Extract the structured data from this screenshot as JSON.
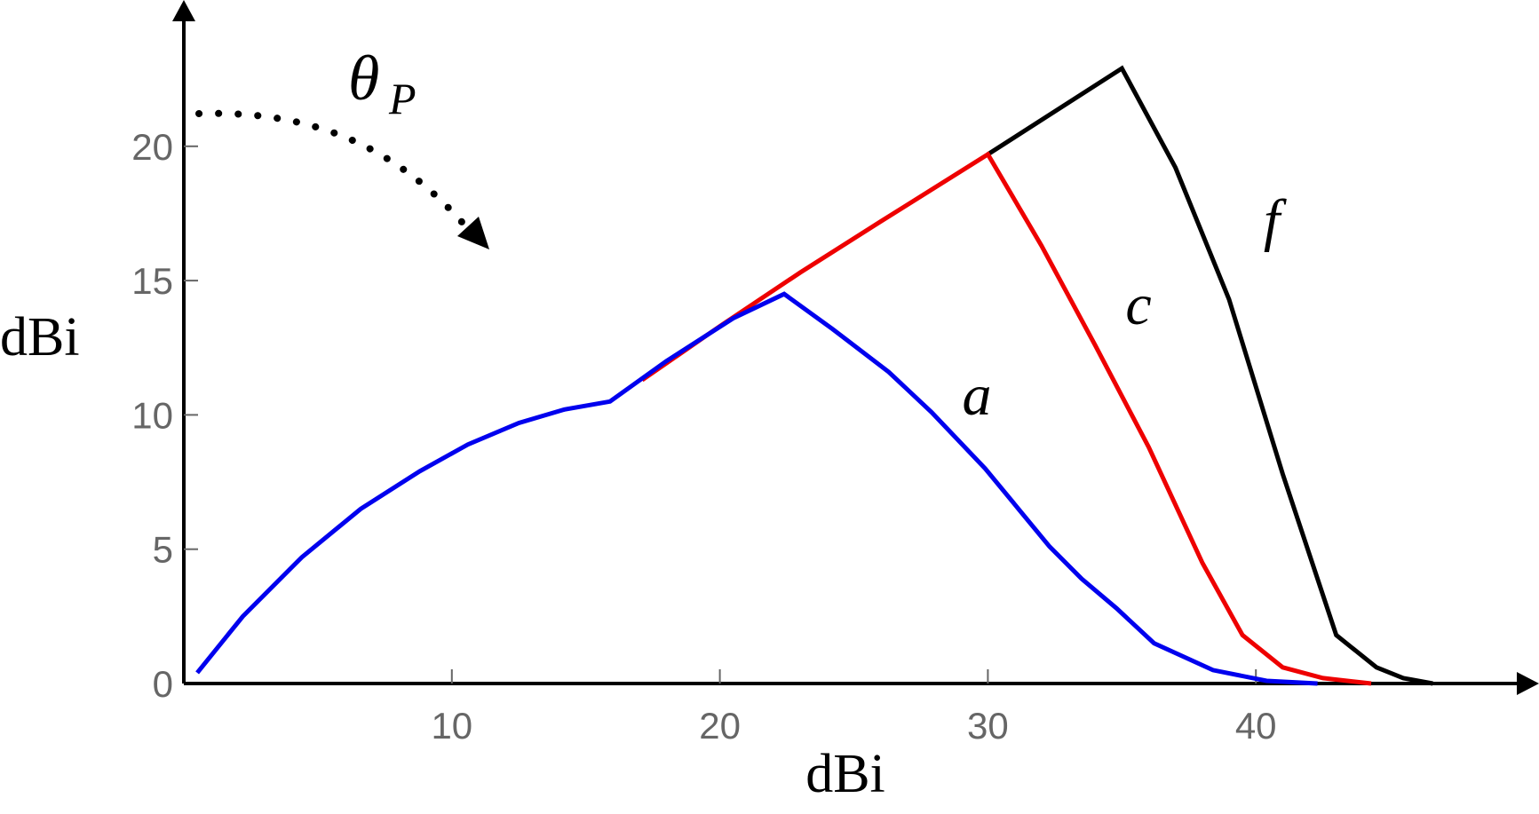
{
  "chart_data": {
    "type": "line",
    "xlabel": "dBi",
    "ylabel": "dBi",
    "xlim": [
      0,
      49
    ],
    "ylim": [
      0,
      25
    ],
    "xticks": [
      10,
      20,
      30,
      40
    ],
    "yticks": [
      0,
      5,
      10,
      15,
      20
    ],
    "grid": false,
    "legend": "none (inline curve labels)",
    "series": [
      {
        "name": "a",
        "color": "#0000ee",
        "x": [
          0.5,
          2.2,
          4.4,
          6.6,
          8.8,
          10.6,
          12.5,
          14.2,
          15.9,
          18.0,
          20.5,
          22.4,
          24.2,
          26.3,
          27.9,
          29.9,
          32.3,
          33.5,
          34.8,
          36.2,
          38.4,
          40.4,
          42.3
        ],
        "y": [
          0.4,
          2.5,
          4.7,
          6.5,
          7.9,
          8.9,
          9.7,
          10.2,
          10.5,
          12.0,
          13.6,
          14.5,
          13.2,
          11.6,
          10.1,
          8.0,
          5.1,
          3.9,
          2.8,
          1.5,
          0.5,
          0.1,
          0.0
        ]
      },
      {
        "name": "c",
        "color": "#ee0000",
        "x": [
          17.1,
          20.0,
          23.0,
          26.0,
          30.0,
          32.0,
          34.0,
          36.0,
          38.0,
          39.5,
          41.0,
          42.5,
          44.3
        ],
        "y": [
          11.3,
          13.3,
          15.3,
          17.2,
          19.7,
          16.3,
          12.6,
          8.8,
          4.5,
          1.8,
          0.6,
          0.2,
          0.0
        ]
      },
      {
        "name": "f",
        "color": "#000000",
        "x": [
          30.0,
          35.0,
          37.0,
          39.0,
          41.0,
          43.0,
          44.5,
          45.5,
          46.6
        ],
        "y": [
          19.7,
          22.9,
          19.2,
          14.3,
          7.8,
          1.8,
          0.6,
          0.2,
          0.0
        ]
      }
    ],
    "annotations": [
      {
        "text": "θ",
        "subscript": "P"
      }
    ]
  }
}
